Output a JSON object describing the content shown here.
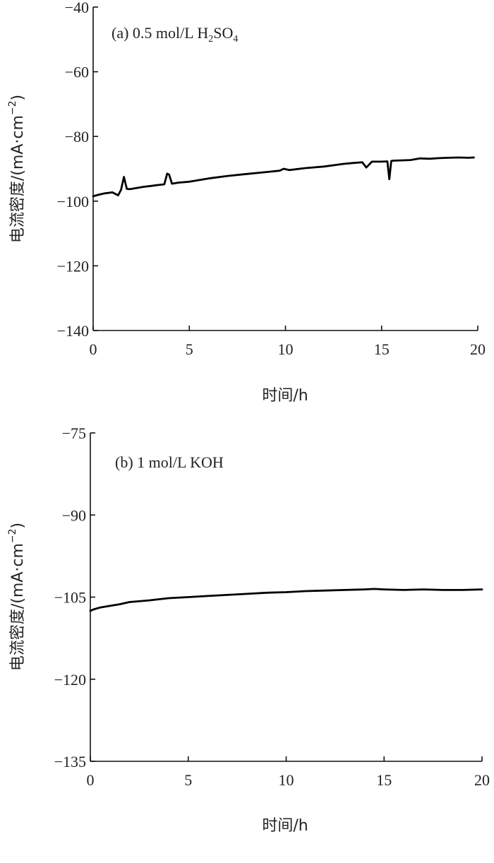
{
  "chart_data": [
    {
      "type": "line",
      "panel_label": "(a) 0.5 mol/L H",
      "panel_label_sub": "2",
      "panel_label_mid": "SO",
      "panel_label_sub2": "4",
      "xlabel": "时间/h",
      "ylabel": "电流密度/(mA·cm",
      "ylabel_sup": "−2",
      "ylabel_close": ")",
      "xlim": [
        0,
        20
      ],
      "ylim": [
        -140,
        -40
      ],
      "xticks": [
        "0",
        "5",
        "10",
        "15",
        "20"
      ],
      "yticks": [
        "−40",
        "−60",
        "−80",
        "−100",
        "−120",
        "−140"
      ],
      "xtick_values": [
        0,
        5,
        10,
        15,
        20
      ],
      "ytick_values": [
        -40,
        -60,
        -80,
        -100,
        -120,
        -140
      ],
      "grid": false,
      "series": [
        {
          "x": [
            0,
            0.3,
            0.6,
            1.0,
            1.3,
            1.45,
            1.6,
            1.75,
            1.9,
            2.2,
            2.6,
            3.0,
            3.4,
            3.7,
            3.85,
            3.95,
            4.1,
            4.4,
            5.0,
            5.5,
            6.0,
            7.0,
            8.0,
            9.0,
            9.7,
            9.9,
            10.2,
            11.0,
            12.0,
            12.5,
            13.0,
            13.5,
            14.0,
            14.2,
            14.5,
            15.0,
            15.3,
            15.4,
            15.5,
            15.6,
            16.0,
            16.5,
            17.0,
            17.5,
            18.0,
            18.5,
            19.0,
            19.5,
            19.8
          ],
          "y": [
            -98.5,
            -98.0,
            -97.6,
            -97.3,
            -98.2,
            -96.5,
            -92.5,
            -96.2,
            -96.3,
            -96.0,
            -95.6,
            -95.3,
            -95.0,
            -94.8,
            -91.5,
            -91.8,
            -94.6,
            -94.3,
            -94.0,
            -93.5,
            -93.0,
            -92.2,
            -91.6,
            -91.0,
            -90.6,
            -90.0,
            -90.4,
            -89.8,
            -89.3,
            -88.9,
            -88.5,
            -88.2,
            -88.0,
            -89.6,
            -87.8,
            -87.8,
            -87.7,
            -93.2,
            -87.6,
            -87.5,
            -87.4,
            -87.3,
            -86.8,
            -86.9,
            -86.7,
            -86.6,
            -86.5,
            -86.6,
            -86.5
          ]
        }
      ]
    },
    {
      "type": "line",
      "panel_label": "(b) 1 mol/L KOH",
      "xlabel": "时间/h",
      "ylabel": "电流密度/(mA·cm",
      "ylabel_sup": "−2",
      "ylabel_close": ")",
      "xlim": [
        0,
        20
      ],
      "ylim": [
        -135,
        -75
      ],
      "xticks": [
        "0",
        "5",
        "10",
        "15",
        "20"
      ],
      "yticks": [
        "−75",
        "−90",
        "−105",
        "−120",
        "−135"
      ],
      "xtick_values": [
        0,
        5,
        10,
        15,
        20
      ],
      "ytick_values": [
        -75,
        -90,
        -105,
        -120,
        -135
      ],
      "grid": false,
      "series": [
        {
          "x": [
            0,
            0.2,
            0.5,
            1.0,
            1.5,
            2.0,
            3.0,
            4.0,
            5.0,
            6.0,
            7.0,
            8.0,
            9.0,
            10.0,
            11.0,
            12.0,
            13.0,
            14.0,
            14.5,
            15.0,
            16.0,
            17.0,
            18.0,
            19.0,
            20.0
          ],
          "y": [
            -107.5,
            -107.2,
            -106.9,
            -106.6,
            -106.3,
            -105.9,
            -105.6,
            -105.2,
            -105.0,
            -104.8,
            -104.6,
            -104.4,
            -104.2,
            -104.1,
            -103.9,
            -103.8,
            -103.7,
            -103.6,
            -103.5,
            -103.6,
            -103.7,
            -103.6,
            -103.7,
            -103.7,
            -103.6
          ]
        }
      ]
    }
  ]
}
